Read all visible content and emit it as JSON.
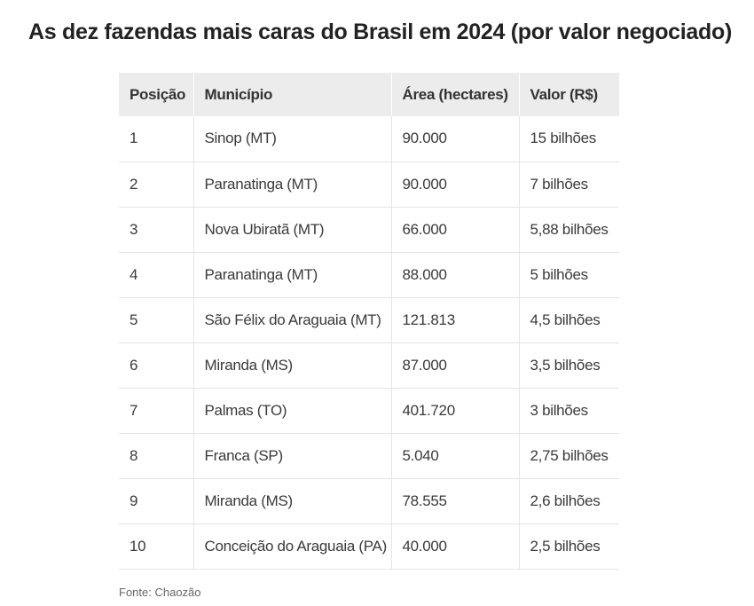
{
  "title": "As dez fazendas mais caras do Brasil em 2024 (por valor negociado)",
  "table": {
    "headers": [
      "Posição",
      "Município",
      "Área (hectares)",
      "Valor (R$)"
    ],
    "rows": [
      [
        "1",
        "Sinop (MT)",
        "90.000",
        "15 bilhões"
      ],
      [
        "2",
        "Paranatinga (MT)",
        "90.000",
        "7 bilhões"
      ],
      [
        "3",
        "Nova Ubiratã (MT)",
        "66.000",
        "5,88 bilhões"
      ],
      [
        "4",
        "Paranatinga (MT)",
        "88.000",
        "5 bilhões"
      ],
      [
        "5",
        "São Félix do Araguaia (MT)",
        "121.813",
        "4,5 bilhões"
      ],
      [
        "6",
        "Miranda (MS)",
        "87.000",
        "3,5 bilhões"
      ],
      [
        "7",
        "Palmas (TO)",
        "401.720",
        "3 bilhões"
      ],
      [
        "8",
        "Franca (SP)",
        "5.040",
        "2,75 bilhões"
      ],
      [
        "9",
        "Miranda (MS)",
        "78.555",
        "2,6 bilhões"
      ],
      [
        "10",
        "Conceição do Araguaia (PA)",
        "40.000",
        "2,5 bilhões"
      ]
    ]
  },
  "source": "Fonte: Chaozão"
}
